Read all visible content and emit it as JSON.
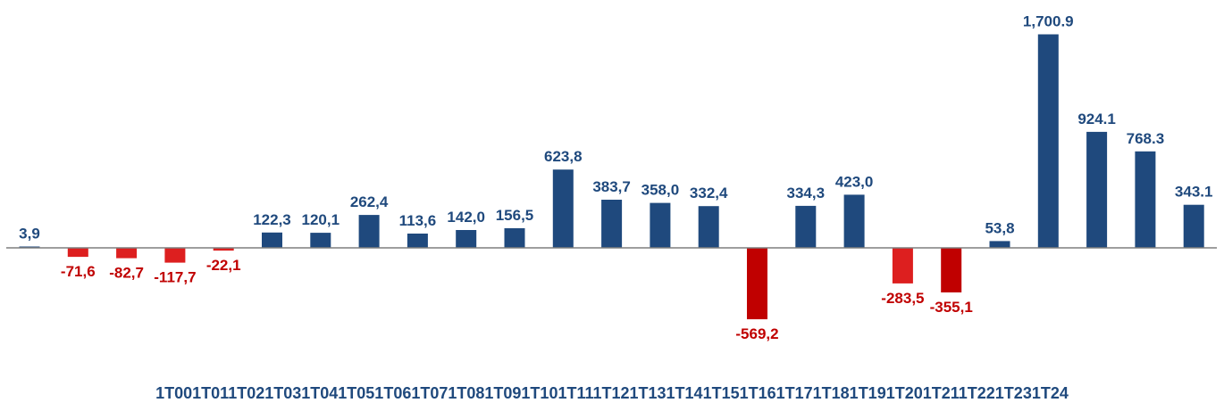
{
  "chart_data": {
    "type": "bar",
    "categories": [
      "1T00",
      "1T01",
      "1T02",
      "1T03",
      "1T04",
      "1T05",
      "1T06",
      "1T07",
      "1T08",
      "1T09",
      "1T10",
      "1T11",
      "1T12",
      "1T13",
      "1T14",
      "1T15",
      "1T16",
      "1T17",
      "1T18",
      "1T19",
      "1T20",
      "1T21",
      "1T22",
      "1T23",
      "1T24"
    ],
    "values": [
      3.9,
      -71.6,
      -82.7,
      -117.7,
      -22.1,
      122.3,
      120.1,
      262.4,
      113.6,
      142.0,
      156.5,
      623.8,
      383.7,
      358.0,
      332.4,
      -569.2,
      334.3,
      423.0,
      -283.5,
      -355.1,
      53.8,
      1700.9,
      924.1,
      768.3,
      343.1
    ],
    "data_labels": [
      "3,9",
      "-71,6",
      "-82,7",
      "-117,7",
      "-22,1",
      "122,3",
      "120,1",
      "262,4",
      "113,6",
      "142,0",
      "156,5",
      "623,8",
      "383,7",
      "358,0",
      "332,4",
      "-569,2",
      "334,3",
      "423,0",
      "-283,5",
      "-355,1",
      "53,8",
      "1,700.9",
      "924.1",
      "768.3",
      "343.1"
    ],
    "x_axis_text": "1T001T011T021T031T041T051T061T071T081T091T101T111T121T131T141T151T161T171T181T191T201T211T221T231T24",
    "title": "",
    "xlabel": "",
    "ylabel": "",
    "ylim": [
      -600,
      1800
    ],
    "grid": false,
    "legend": "none",
    "colors": {
      "positive": "#1f497d",
      "negative": [
        "#dd1f1f",
        "#c00000"
      ],
      "axis": "#7f7f7f",
      "x_labels": "#1f497d"
    }
  }
}
